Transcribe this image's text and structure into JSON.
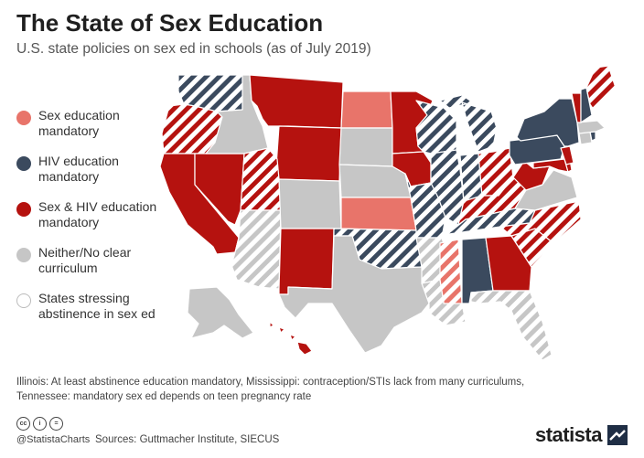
{
  "title": "The State of Sex Education",
  "subtitle": "U.S. state policies on sex ed in schools (as of July 2019)",
  "colors": {
    "sex_ed": "#e8746a",
    "hiv": "#3b4a5e",
    "sex_hiv": "#b5120f",
    "neither": "#c6c6c6",
    "abstinence_outline": "#bbbbbb"
  },
  "legend": [
    {
      "label_line1": "Sex education",
      "label_line2": "mandatory",
      "color": "#e8746a"
    },
    {
      "label_line1": "HIV education",
      "label_line2": "mandatory",
      "color": "#3b4a5e"
    },
    {
      "label_line1": "Sex & HIV education",
      "label_line2": "mandatory",
      "color": "#b5120f"
    },
    {
      "label_line1": "Neither/No clear",
      "label_line2": "curriculum",
      "color": "#c6c6c6"
    },
    {
      "label_line1": "States stressing",
      "label_line2": "abstinence in sex ed",
      "color": "#ffffff"
    }
  ],
  "footnote": {
    "line1": "Illinois: At least abstinence education mandatory, Mississippi: contraception/STIs lack from many curriculums,",
    "line2": "Tennessee: mandatory sex ed depends on teen pregnancy rate"
  },
  "footer": {
    "cc_icons": [
      "cc-icon",
      "by-icon",
      "equals-icon"
    ],
    "cc_labels": [
      "cc",
      "i",
      "="
    ],
    "handle": "@StatistaCharts",
    "sources": "Sources: Guttmacher Institute, SIECUS",
    "brand": "statista"
  },
  "map_states": [
    {
      "name": "WA",
      "category": "hiv",
      "abstinence": true
    },
    {
      "name": "OR",
      "category": "sex_hiv",
      "abstinence": true
    },
    {
      "name": "CA",
      "category": "sex_hiv",
      "abstinence": false
    },
    {
      "name": "NV",
      "category": "sex_hiv",
      "abstinence": false
    },
    {
      "name": "ID",
      "category": "neither",
      "abstinence": false
    },
    {
      "name": "MT",
      "category": "sex_hiv",
      "abstinence": false
    },
    {
      "name": "WY",
      "category": "sex_hiv",
      "abstinence": false
    },
    {
      "name": "UT",
      "category": "sex_hiv",
      "abstinence": true
    },
    {
      "name": "AZ",
      "category": "neither",
      "abstinence": true
    },
    {
      "name": "CO",
      "category": "neither",
      "abstinence": false
    },
    {
      "name": "NM",
      "category": "sex_hiv",
      "abstinence": false
    },
    {
      "name": "ND",
      "category": "sex_ed",
      "abstinence": false
    },
    {
      "name": "SD",
      "category": "neither",
      "abstinence": false
    },
    {
      "name": "NE",
      "category": "neither",
      "abstinence": false
    },
    {
      "name": "KS",
      "category": "sex_ed",
      "abstinence": false
    },
    {
      "name": "OK",
      "category": "hiv",
      "abstinence": true
    },
    {
      "name": "TX",
      "category": "neither",
      "abstinence": false
    },
    {
      "name": "MN",
      "category": "sex_hiv",
      "abstinence": false
    },
    {
      "name": "IA",
      "category": "sex_hiv",
      "abstinence": false
    },
    {
      "name": "MO",
      "category": "hiv",
      "abstinence": true
    },
    {
      "name": "AR",
      "category": "neither",
      "abstinence": true
    },
    {
      "name": "LA",
      "category": "neither",
      "abstinence": true
    },
    {
      "name": "WI",
      "category": "hiv",
      "abstinence": true
    },
    {
      "name": "IL",
      "category": "hiv",
      "abstinence": true
    },
    {
      "name": "MI",
      "category": "hiv",
      "abstinence": true
    },
    {
      "name": "IN",
      "category": "hiv",
      "abstinence": true
    },
    {
      "name": "OH",
      "category": "sex_hiv",
      "abstinence": true
    },
    {
      "name": "KY",
      "category": "sex_hiv",
      "abstinence": true
    },
    {
      "name": "TN",
      "category": "hiv",
      "abstinence": true
    },
    {
      "name": "MS",
      "category": "sex_ed",
      "abstinence": true
    },
    {
      "name": "AL",
      "category": "hiv",
      "abstinence": false
    },
    {
      "name": "GA",
      "category": "sex_hiv",
      "abstinence": false
    },
    {
      "name": "FL",
      "category": "neither",
      "abstinence": true
    },
    {
      "name": "SC",
      "category": "sex_hiv",
      "abstinence": true
    },
    {
      "name": "NC",
      "category": "sex_hiv",
      "abstinence": true
    },
    {
      "name": "VA",
      "category": "neither",
      "abstinence": false
    },
    {
      "name": "WV",
      "category": "sex_hiv",
      "abstinence": false
    },
    {
      "name": "PA",
      "category": "hiv",
      "abstinence": false
    },
    {
      "name": "NY",
      "category": "hiv",
      "abstinence": false
    },
    {
      "name": "MD",
      "category": "sex_hiv",
      "abstinence": false
    },
    {
      "name": "DE",
      "category": "sex_hiv",
      "abstinence": false
    },
    {
      "name": "NJ",
      "category": "sex_hiv",
      "abstinence": false
    },
    {
      "name": "CT",
      "category": "neither",
      "abstinence": false
    },
    {
      "name": "RI",
      "category": "hiv",
      "abstinence": false
    },
    {
      "name": "MA",
      "category": "neither",
      "abstinence": false
    },
    {
      "name": "VT",
      "category": "sex_hiv",
      "abstinence": false
    },
    {
      "name": "NH",
      "category": "hiv",
      "abstinence": false
    },
    {
      "name": "ME",
      "category": "sex_hiv",
      "abstinence": true
    },
    {
      "name": "AK",
      "category": "neither",
      "abstinence": false
    },
    {
      "name": "HI",
      "category": "sex_hiv",
      "abstinence": false
    }
  ]
}
